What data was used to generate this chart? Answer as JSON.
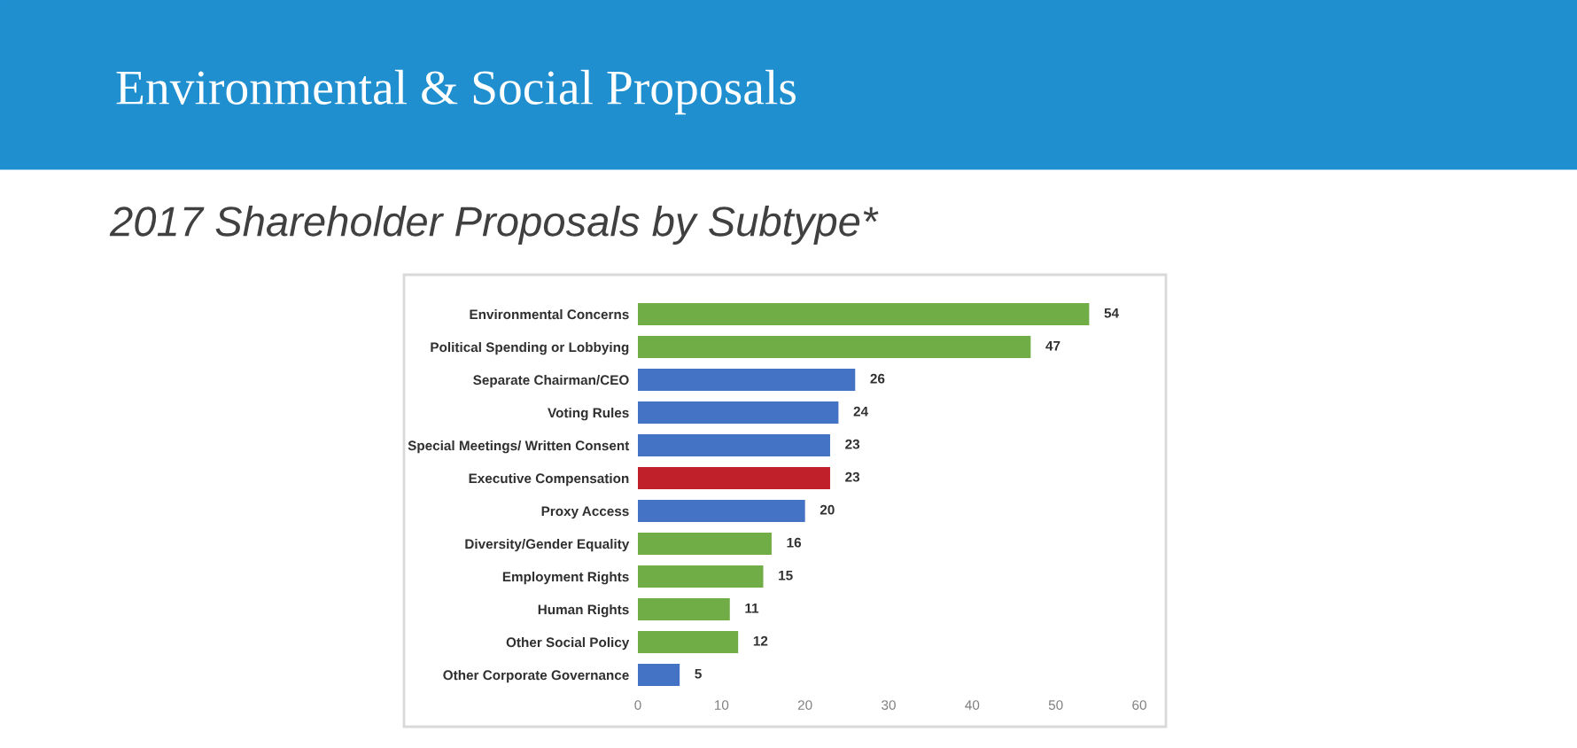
{
  "chart_data": {
    "type": "bar",
    "orientation": "horizontal",
    "title": "Environmental & Social Proposals",
    "subtitle": "2017 Shareholder Proposals by Subtype*",
    "categories": [
      "Environmental Concerns",
      "Political Spending or Lobbying",
      "Separate Chairman/CEO",
      "Voting Rules",
      "Special Meetings/ Written Consent",
      "Executive Compensation",
      "Proxy Access",
      "Diversity/Gender Equality",
      "Employment Rights",
      "Human Rights",
      "Other Social Policy",
      "Other Corporate Governance"
    ],
    "values": [
      54,
      47,
      26,
      24,
      23,
      23,
      20,
      16,
      15,
      11,
      12,
      5
    ],
    "colors": [
      "#70ad47",
      "#70ad47",
      "#4472c4",
      "#4472c4",
      "#4472c4",
      "#c0202a",
      "#4472c4",
      "#70ad47",
      "#70ad47",
      "#70ad47",
      "#70ad47",
      "#4472c4"
    ],
    "xlim": [
      0,
      60
    ],
    "xticks": [
      0,
      10,
      20,
      30,
      40,
      50,
      60
    ],
    "data_labels": true,
    "grid": false,
    "legend": false
  }
}
